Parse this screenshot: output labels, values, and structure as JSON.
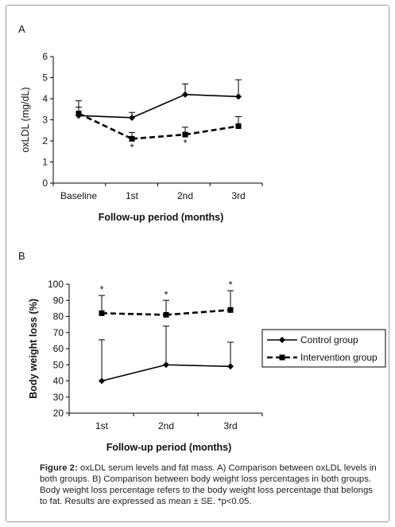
{
  "chart_data": [
    {
      "panel_label": "A",
      "type": "line",
      "categories": [
        "Baseline",
        "1st",
        "2nd",
        "3rd"
      ],
      "series": [
        {
          "key": "control",
          "values": [
            3.2,
            3.1,
            4.2,
            4.1
          ],
          "error": [
            0.7,
            0.25,
            0.5,
            0.8
          ],
          "style": "solid",
          "marker": "diamond"
        },
        {
          "key": "intervention",
          "values": [
            3.3,
            2.1,
            2.3,
            2.7
          ],
          "error": [
            0.3,
            0.3,
            0.35,
            0.45
          ],
          "style": "dashed",
          "marker": "square"
        }
      ],
      "annotations": [
        {
          "category": "1st",
          "text": "*"
        },
        {
          "category": "2nd",
          "text": "*"
        }
      ],
      "xlabel": "Follow-up period (months)",
      "ylabel": "oxLDL (mg/dL)",
      "ylim": [
        0,
        6
      ],
      "yticks": [
        "0",
        "1",
        "2",
        "3",
        "4",
        "5",
        "6"
      ],
      "grid": false,
      "legend": "none"
    },
    {
      "panel_label": "B",
      "type": "line",
      "categories": [
        "1st",
        "2nd",
        "3rd"
      ],
      "series": [
        {
          "key": "control",
          "name": "Control group",
          "values": [
            40,
            50,
            49
          ],
          "error": [
            25.5,
            24,
            15
          ],
          "style": "solid",
          "marker": "diamond"
        },
        {
          "key": "intervention",
          "name": "Intervention group",
          "values": [
            82,
            81,
            84
          ],
          "error": [
            11,
            9,
            12
          ],
          "style": "dashed",
          "marker": "square"
        }
      ],
      "annotations": [
        {
          "category": "1st",
          "text": "*"
        },
        {
          "category": "2nd",
          "text": "*"
        },
        {
          "category": "3rd",
          "text": "*"
        }
      ],
      "xlabel": "Follow-up period (months)",
      "ylabel": "Body weight loss (%)",
      "ylim": [
        20,
        100
      ],
      "yticks": [
        "20",
        "30",
        "40",
        "50",
        "60",
        "70",
        "80",
        "90",
        "100"
      ],
      "grid": false,
      "legend": "right"
    }
  ],
  "caption": {
    "lead": "Figure 2:",
    "text": " oxLDL serum levels and fat mass. A) Comparison between oxLDL levels in both groups. B) Comparison between body weight loss percentages in both groups. Body weight loss percentage refers to the body weight loss percentage that belongs to fat. Results are expressed as mean ± SE. *p<0.05."
  },
  "colors": {
    "line": "#000000",
    "frame": "#9a9a9a",
    "text": "#222222"
  }
}
